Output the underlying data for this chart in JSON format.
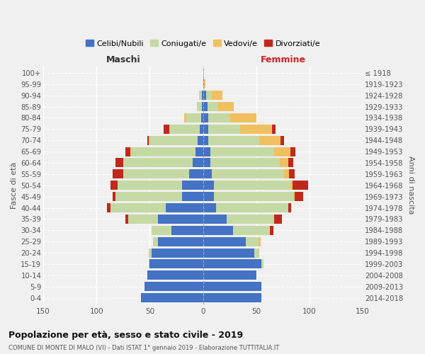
{
  "age_groups_display": [
    "0-4",
    "5-9",
    "10-14",
    "15-19",
    "20-24",
    "25-29",
    "30-34",
    "35-39",
    "40-44",
    "45-49",
    "50-54",
    "55-59",
    "60-64",
    "65-69",
    "70-74",
    "75-79",
    "80-84",
    "85-89",
    "90-94",
    "95-99",
    "100+"
  ],
  "birth_years_display": [
    "2014-2018",
    "2009-2013",
    "2004-2008",
    "1999-2003",
    "1994-1998",
    "1989-1993",
    "1984-1988",
    "1979-1983",
    "1974-1978",
    "1969-1973",
    "1964-1968",
    "1959-1963",
    "1954-1958",
    "1949-1953",
    "1944-1948",
    "1939-1943",
    "1934-1938",
    "1929-1933",
    "1924-1928",
    "1919-1923",
    "≤ 1918"
  ],
  "male": {
    "celibe": [
      58,
      55,
      52,
      50,
      48,
      42,
      30,
      42,
      35,
      20,
      20,
      13,
      10,
      7,
      5,
      3,
      2,
      1,
      1,
      0,
      0
    ],
    "coniugato": [
      0,
      0,
      0,
      1,
      3,
      5,
      18,
      28,
      52,
      62,
      60,
      62,
      65,
      60,
      45,
      28,
      14,
      5,
      3,
      0,
      0
    ],
    "vedovo": [
      0,
      0,
      0,
      0,
      0,
      0,
      0,
      0,
      0,
      0,
      0,
      0,
      0,
      1,
      1,
      1,
      2,
      0,
      0,
      0,
      0
    ],
    "divorziato": [
      0,
      0,
      0,
      0,
      0,
      0,
      0,
      3,
      3,
      3,
      7,
      10,
      7,
      5,
      1,
      5,
      0,
      0,
      0,
      0,
      0
    ]
  },
  "female": {
    "nubile": [
      55,
      55,
      50,
      55,
      48,
      40,
      28,
      22,
      12,
      10,
      10,
      8,
      7,
      7,
      5,
      5,
      5,
      4,
      3,
      1,
      0
    ],
    "coniugata": [
      0,
      0,
      0,
      2,
      5,
      12,
      35,
      45,
      68,
      75,
      72,
      68,
      65,
      60,
      48,
      30,
      20,
      10,
      5,
      0,
      0
    ],
    "vedova": [
      0,
      0,
      0,
      0,
      0,
      2,
      0,
      0,
      0,
      1,
      2,
      5,
      8,
      15,
      20,
      30,
      25,
      15,
      10,
      1,
      1
    ],
    "divorziata": [
      0,
      0,
      0,
      0,
      0,
      0,
      3,
      7,
      3,
      8,
      15,
      5,
      5,
      5,
      3,
      3,
      0,
      0,
      0,
      0,
      0
    ]
  },
  "colors": {
    "celibe": "#4472c4",
    "coniugato": "#c5d9a4",
    "vedovo": "#f0c060",
    "divorziato": "#c0281c"
  },
  "xlim": 150,
  "title": "Popolazione per età, sesso e stato civile - 2019",
  "subtitle": "COMUNE DI MONTE DI MALO (VI) - Dati ISTAT 1° gennaio 2019 - Elaborazione TUTTITALIA.IT",
  "ylabel_left": "Fasce di età",
  "ylabel_right": "Anni di nascita",
  "xlabel_left": "Maschi",
  "xlabel_right": "Femmine",
  "bg_color": "#f0f0f0",
  "legend_labels": [
    "Celibi/Nubili",
    "Coniugati/e",
    "Vedovi/e",
    "Divorziati/e"
  ]
}
